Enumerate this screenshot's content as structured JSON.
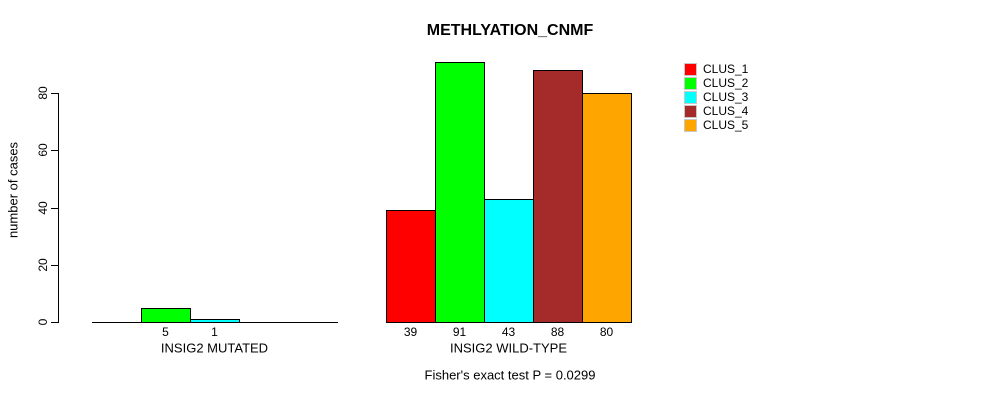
{
  "title": "METHLYATION_CNMF",
  "footer": "Fisher's exact test P = 0.0299",
  "y_axis": {
    "label": "number of cases",
    "ticks": [
      "0",
      "20",
      "40",
      "60",
      "80"
    ]
  },
  "legend": {
    "items": [
      {
        "label": "CLUS_1",
        "color": "#FF0000"
      },
      {
        "label": "CLUS_2",
        "color": "#00FF00"
      },
      {
        "label": "CLUS_3",
        "color": "#00FFFF"
      },
      {
        "label": "CLUS_4",
        "color": "#A52A2A"
      },
      {
        "label": "CLUS_5",
        "color": "#FFA500"
      }
    ]
  },
  "chart_data": {
    "type": "bar",
    "title": "METHLYATION_CNMF",
    "ylabel": "number of cases",
    "ylim": [
      0,
      91
    ],
    "yticks": [
      0,
      20,
      40,
      60,
      80
    ],
    "grid": false,
    "legend_position": "top-right",
    "clusters": [
      "CLUS_1",
      "CLUS_2",
      "CLUS_3",
      "CLUS_4",
      "CLUS_5"
    ],
    "cluster_colors": [
      "#FF0000",
      "#00FF00",
      "#00FFFF",
      "#A52A2A",
      "#FFA500"
    ],
    "categories": [
      "INSIG2 MUTATED",
      "INSIG2 WILD-TYPE"
    ],
    "groups": [
      {
        "label": "INSIG2 MUTATED",
        "values": [
          0,
          5,
          1,
          0,
          0
        ],
        "value_labels": [
          "",
          "5",
          "1",
          "",
          ""
        ]
      },
      {
        "label": "INSIG2 WILD-TYPE",
        "values": [
          39,
          91,
          43,
          88,
          80
        ],
        "value_labels": [
          "39",
          "91",
          "43",
          "88",
          "80"
        ]
      }
    ],
    "annotation": "Fisher's exact test P = 0.0299"
  }
}
